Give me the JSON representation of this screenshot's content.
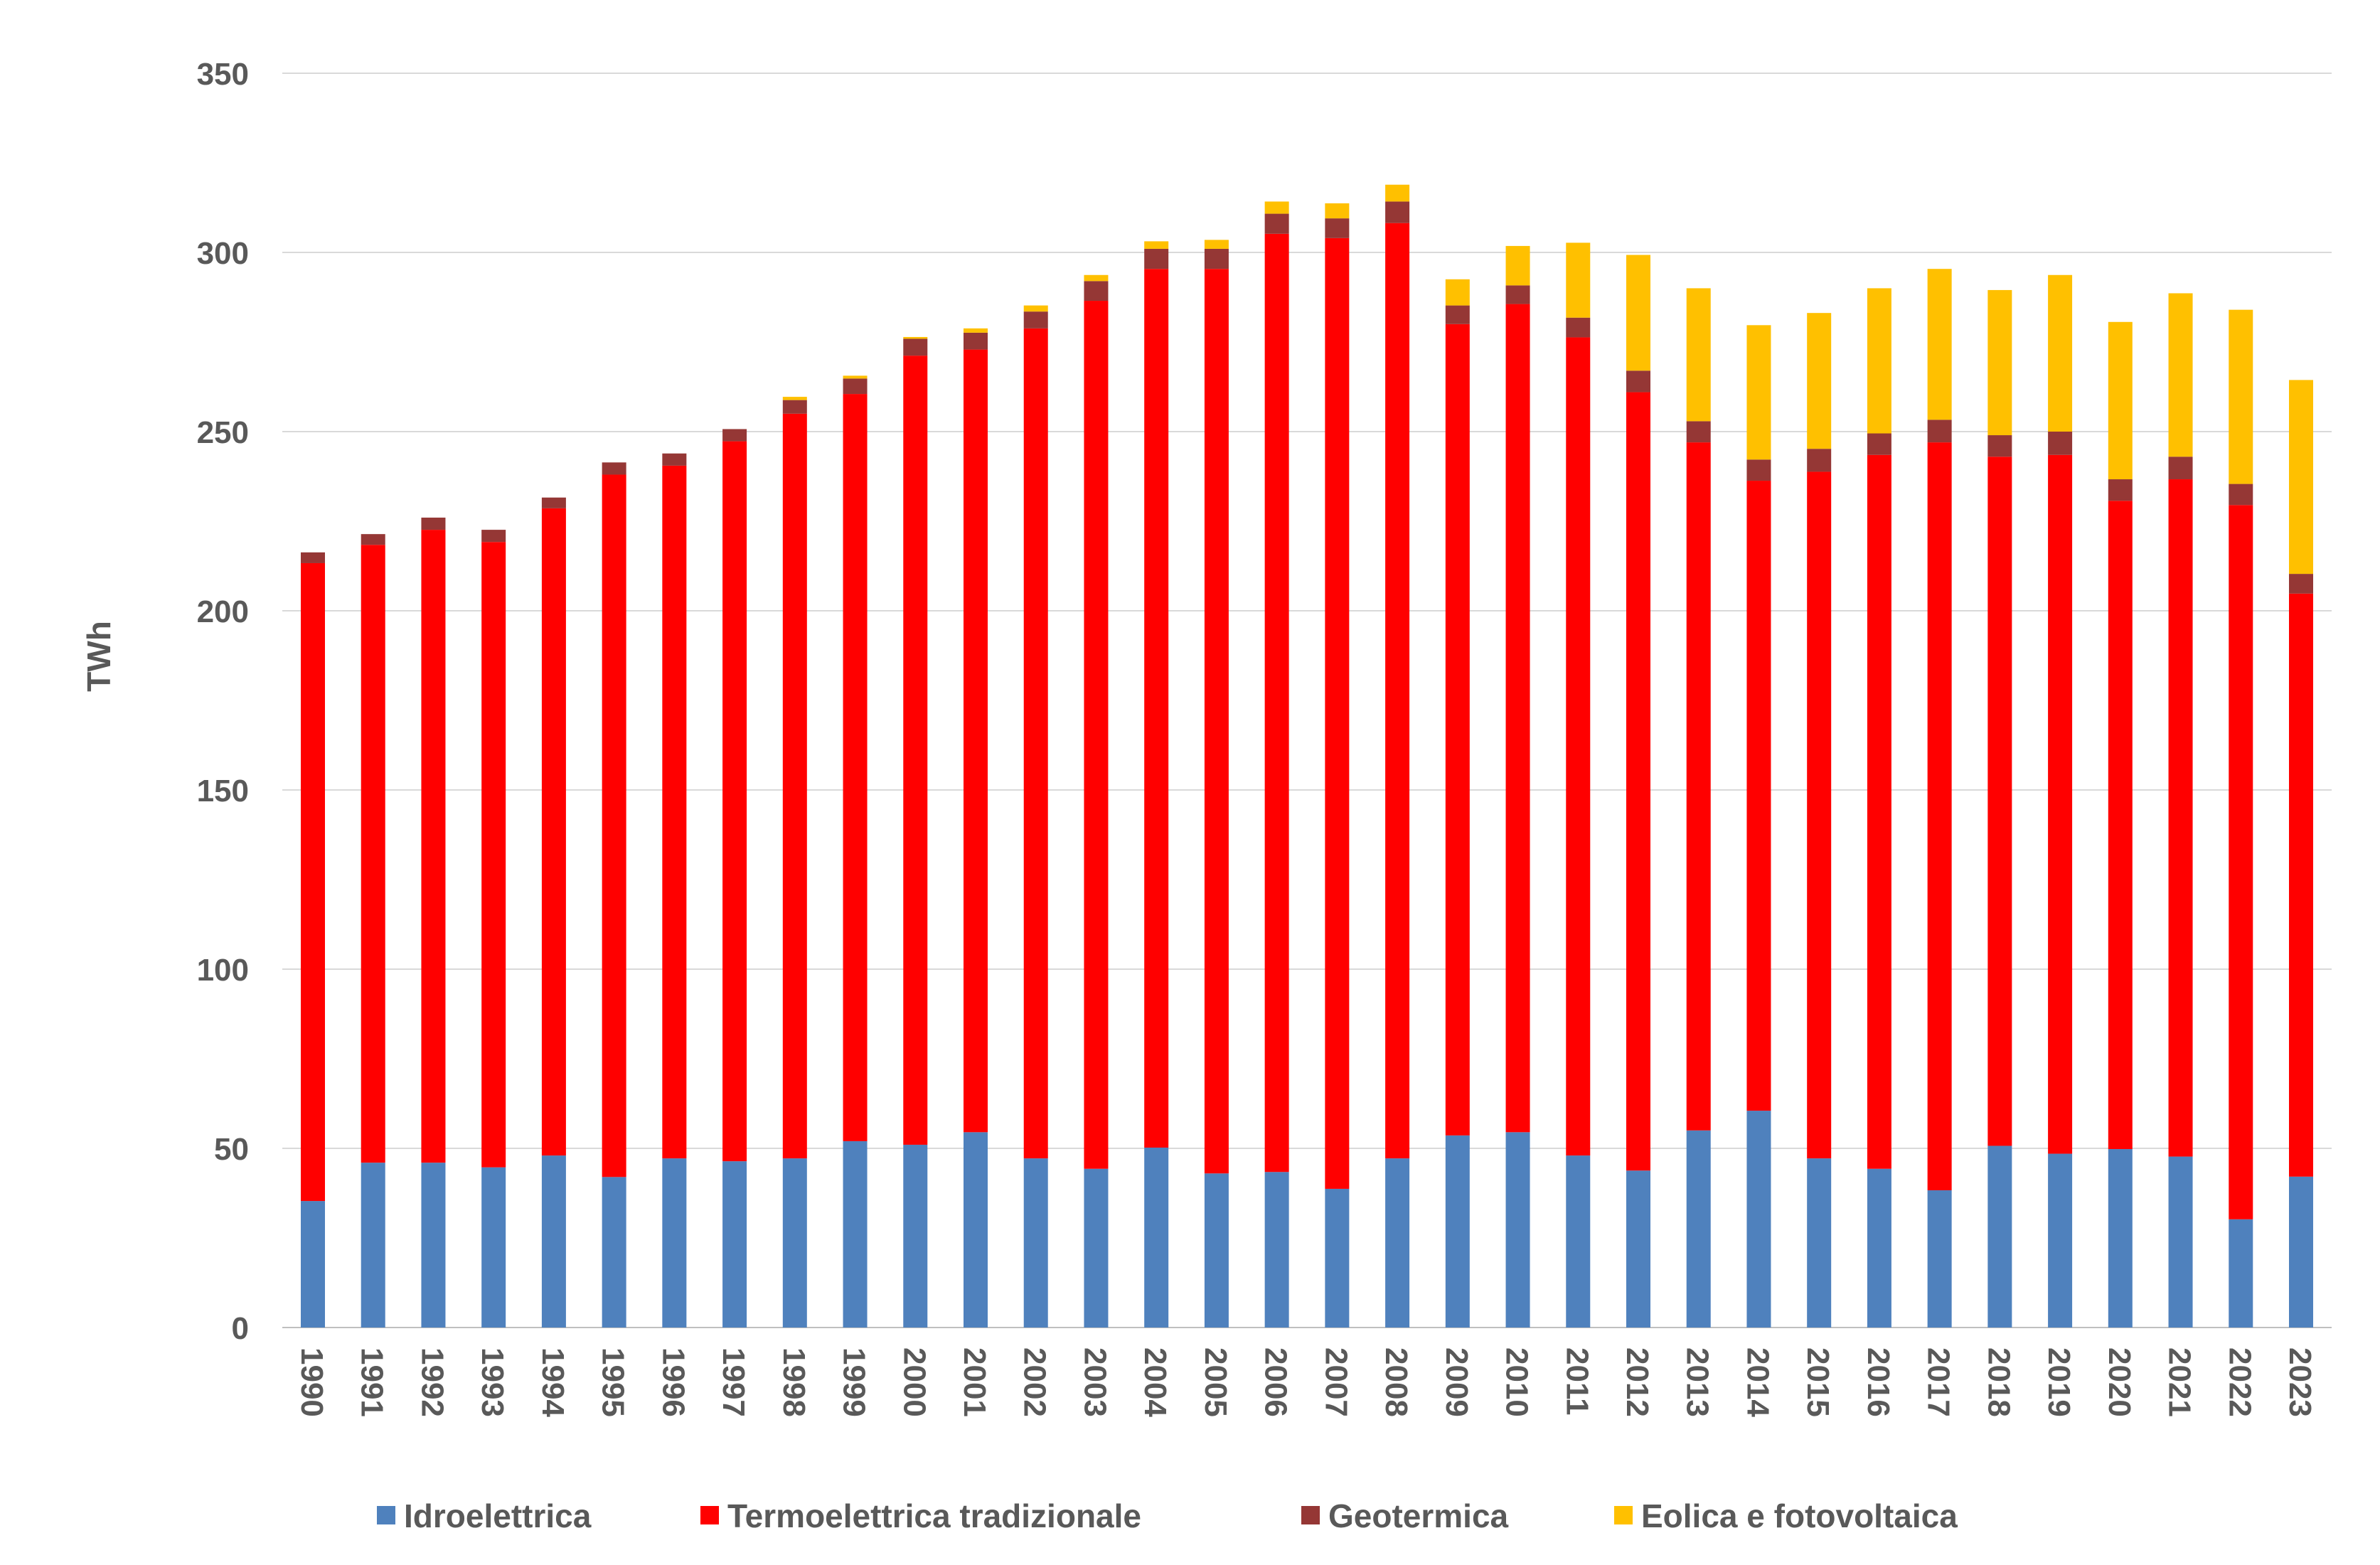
{
  "chart_data": {
    "type": "bar",
    "stacked": true,
    "title": "",
    "xlabel": "",
    "ylabel": "TWh",
    "ylim": [
      0,
      350
    ],
    "yticks": [
      0,
      50,
      100,
      150,
      200,
      250,
      300,
      350
    ],
    "grid": true,
    "legend_position": "bottom",
    "categories": [
      "1990",
      "1991",
      "1992",
      "1993",
      "1994",
      "1995",
      "1996",
      "1997",
      "1998",
      "1999",
      "2000",
      "2001",
      "2002",
      "2003",
      "2004",
      "2005",
      "2006",
      "2007",
      "2008",
      "2009",
      "2010",
      "2011",
      "2012",
      "2013",
      "2014",
      "2015",
      "2016",
      "2017",
      "2018",
      "2019",
      "2020",
      "2021",
      "2022",
      "2023"
    ],
    "series": [
      {
        "name": "Idroelettrica",
        "color": "#4F81BD",
        "values": [
          35.3,
          46.0,
          46.0,
          44.7,
          48.0,
          42.0,
          47.2,
          46.4,
          47.2,
          52.0,
          51.0,
          54.5,
          47.2,
          44.3,
          50.2,
          43.0,
          43.4,
          38.7,
          47.2,
          53.6,
          54.5,
          48.0,
          43.8,
          55.0,
          60.5,
          47.2,
          44.3,
          38.3,
          50.7,
          48.5,
          49.8,
          47.7,
          30.2,
          42.1
        ]
      },
      {
        "name": "Termoelettrica tradizionale",
        "color": "#FF0000",
        "values": [
          178.0,
          172.4,
          176.6,
          174.5,
          180.6,
          196.0,
          193.3,
          200.9,
          207.8,
          208.5,
          220.2,
          218.4,
          231.6,
          242.2,
          245.2,
          252.4,
          261.8,
          265.3,
          261.0,
          226.4,
          231.1,
          228.3,
          217.2,
          192.0,
          175.8,
          191.6,
          199.2,
          208.7,
          192.3,
          195.0,
          180.9,
          189.0,
          199.3,
          162.7
        ]
      },
      {
        "name": "Geotermica",
        "color": "#953735",
        "values": [
          3.0,
          3.0,
          3.4,
          3.4,
          3.0,
          3.4,
          3.4,
          3.4,
          3.8,
          4.3,
          4.7,
          4.7,
          4.7,
          5.5,
          5.6,
          5.6,
          5.6,
          5.5,
          6.0,
          5.2,
          5.2,
          5.5,
          6.0,
          5.9,
          5.9,
          6.4,
          6.0,
          6.3,
          6.0,
          6.5,
          6.0,
          6.3,
          5.9,
          5.5
        ]
      },
      {
        "name": "Eolica e fotovoltaica",
        "color": "#FFC000",
        "values": [
          0,
          0,
          0,
          0,
          0,
          0,
          0,
          0,
          0.9,
          0.8,
          0.5,
          1.2,
          1.7,
          1.7,
          2.1,
          2.5,
          3.4,
          4.2,
          4.7,
          7.3,
          11.0,
          20.9,
          32.3,
          37.1,
          37.5,
          37.9,
          40.5,
          42.1,
          40.5,
          43.7,
          43.9,
          45.6,
          48.6,
          54.1
        ]
      }
    ]
  }
}
